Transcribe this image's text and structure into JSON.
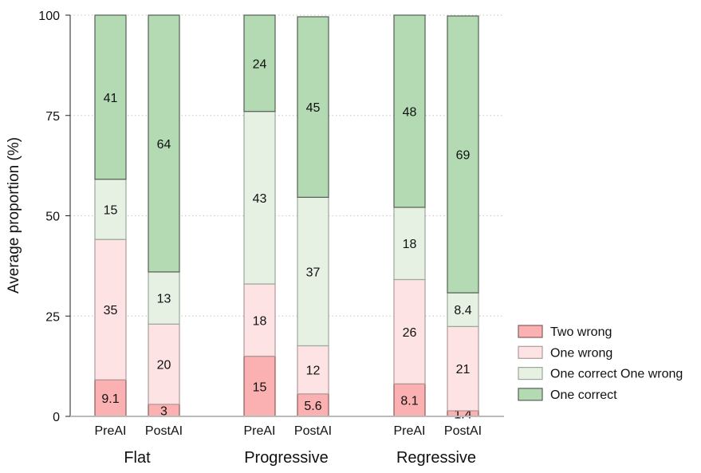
{
  "chart_data": {
    "type": "stacked-bar",
    "title": "",
    "ylabel": "Average proportion (%)",
    "xlabel": "",
    "ylim": [
      0,
      100
    ],
    "yticks": [
      0,
      25,
      50,
      75,
      100
    ],
    "grid": "horizontal dotted",
    "legend_position": "right",
    "groups": [
      "Flat",
      "Progressive",
      "Regressive"
    ],
    "bars": [
      "PreAI",
      "PostAI"
    ],
    "series": [
      {
        "name": "Two wrong",
        "color": "#fbb0b1",
        "edge": "#8a5a5a",
        "values": [
          [
            9.1,
            3
          ],
          [
            15,
            5.6
          ],
          [
            8.1,
            1.4
          ]
        ],
        "labels": [
          [
            "9.1",
            "3"
          ],
          [
            "15",
            "5.6"
          ],
          [
            "8.1",
            "1.4"
          ]
        ]
      },
      {
        "name": "One wrong",
        "color": "#fde3e4",
        "edge": "#b09a9a",
        "values": [
          [
            35,
            20
          ],
          [
            18,
            12
          ],
          [
            26,
            21
          ]
        ],
        "labels": [
          [
            "35",
            "20"
          ],
          [
            "18",
            "12"
          ],
          [
            "26",
            "21"
          ]
        ]
      },
      {
        "name": "One correct One wrong",
        "color": "#e6f1e4",
        "edge": "#9aa89a",
        "values": [
          [
            15,
            13
          ],
          [
            43,
            37
          ],
          [
            18,
            8.4
          ]
        ],
        "labels": [
          [
            "15",
            "13"
          ],
          [
            "43",
            "37"
          ],
          [
            "18",
            "8.4"
          ]
        ]
      },
      {
        "name": "One correct",
        "color": "#b3dab2",
        "edge": "#555f55",
        "values": [
          [
            41,
            64
          ],
          [
            24,
            45
          ],
          [
            48,
            69
          ]
        ],
        "labels": [
          [
            "41",
            "64"
          ],
          [
            "24",
            "45"
          ],
          [
            "48",
            "69"
          ]
        ]
      }
    ]
  }
}
